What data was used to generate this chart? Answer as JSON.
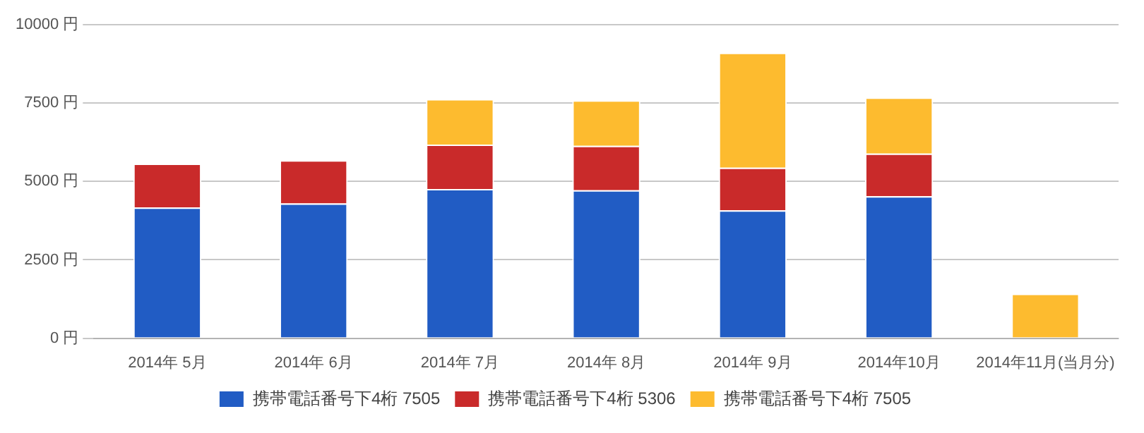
{
  "chart_data": {
    "type": "bar",
    "stacked": true,
    "categories": [
      "2014年 5月",
      "2014年 6月",
      "2014年 7月",
      "2014年 8月",
      "2014年 9月",
      "2014年10月",
      "2014年11月(当月分)"
    ],
    "series": [
      {
        "name": "携帯電話番号下4桁 7505",
        "color": "#215cc4",
        "values": [
          4170,
          4300,
          4760,
          4720,
          4080,
          4530,
          null
        ]
      },
      {
        "name": "携帯電話番号下4桁 5306",
        "color": "#c92a2a",
        "values": [
          1400,
          1380,
          1420,
          1420,
          1360,
          1360,
          null
        ]
      },
      {
        "name": "携帯電話番号下4桁 7505",
        "color": "#fdbb2f",
        "values": [
          null,
          null,
          1450,
          1450,
          3670,
          1790,
          1420
        ]
      }
    ],
    "ylim": [
      0,
      10000
    ],
    "yticks": [
      {
        "value": 0,
        "label": "0 円"
      },
      {
        "value": 2500,
        "label": "2500 円"
      },
      {
        "value": 5000,
        "label": "5000 円"
      },
      {
        "value": 7500,
        "label": "7500 円"
      },
      {
        "value": 10000,
        "label": "10000 円"
      }
    ],
    "grid": "y",
    "legend": "bottom"
  }
}
